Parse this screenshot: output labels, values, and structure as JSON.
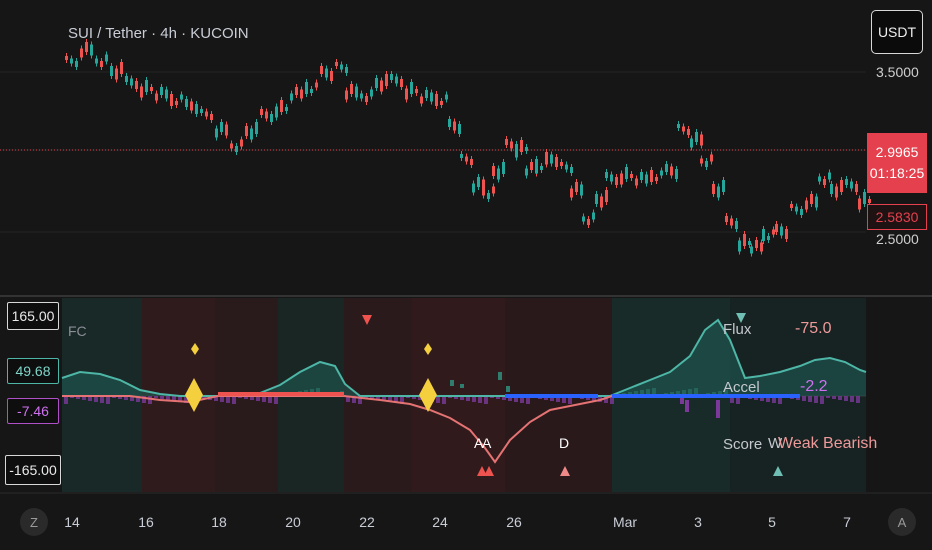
{
  "header": {
    "symbol_title": "SUI / Tether · 4h · KUCOIN",
    "currency_button": "USDT"
  },
  "price_axis": {
    "top_label": "3.5000",
    "current_price": "2.9965",
    "countdown": "01:18:25",
    "ref_price": "2.5830",
    "bottom_label": "2.5000"
  },
  "indicator": {
    "name": "FC",
    "upper_bound": "165.00",
    "lower_bound": "-165.00",
    "flux_value_tag": "49.68",
    "accel_value_tag": "-7.46",
    "markers": {
      "a1": "A",
      "a2": "A",
      "d": "D",
      "w": "W"
    },
    "overlay": {
      "flux_label": "Flux",
      "flux_value": "-75.0",
      "accel_label": "Accel",
      "accel_value": "-2.2",
      "score_label": "Score",
      "score_value": "Weak Bearish"
    }
  },
  "time_axis": {
    "labels": [
      "14",
      "16",
      "18",
      "20",
      "22",
      "24",
      "26",
      "Mar",
      "3",
      "5",
      "7"
    ],
    "left_button": "Z",
    "right_button": "A"
  },
  "colors": {
    "up": "#26a69a",
    "down": "#ef5350",
    "accent_red": "#e5404d",
    "flux_line": "#4db6a6",
    "bear_line": "#e57373",
    "diamond": "#f4d03f",
    "blue_line": "#2962ff",
    "purple": "#9c27b0"
  }
}
